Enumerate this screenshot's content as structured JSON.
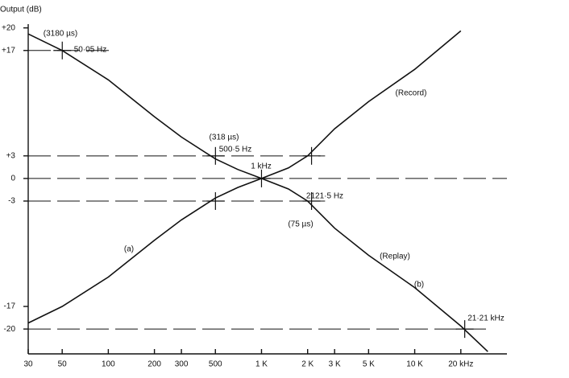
{
  "chart_data": {
    "type": "line",
    "y_axis_label": "Output (dB)",
    "log_x": true,
    "xlim": [
      30,
      40000
    ],
    "xticks": [
      30,
      50,
      100,
      200,
      300,
      500,
      {
        "value": 1000,
        "label": "1 K"
      },
      {
        "value": 2000,
        "label": "2 K"
      },
      {
        "value": 3000,
        "label": "3 K"
      },
      {
        "value": 5000,
        "label": "5 K"
      },
      {
        "value": 10000,
        "label": "10 K"
      },
      {
        "value": 20000,
        "label": "20 kHz"
      }
    ],
    "ylim": [
      -23.3,
      20.5
    ],
    "yticks": [
      {
        "value": 20,
        "label": "+20"
      },
      {
        "value": 17,
        "label": "+17"
      },
      {
        "value": 3,
        "label": "+3"
      },
      0,
      -3,
      -17,
      -20
    ],
    "series": [
      {
        "name": "(Replay)",
        "color": "#111111",
        "x": [
          30,
          50,
          100,
          200,
          300,
          500,
          700,
          1000,
          1500,
          2000,
          3000,
          5000,
          10000,
          20000,
          30000
        ],
        "values": [
          19.2,
          17,
          13.1,
          8.2,
          5.5,
          2.6,
          1.2,
          0,
          -1.4,
          -3,
          -6.6,
          -10.2,
          -14.5,
          -19.6,
          -23
        ]
      },
      {
        "name": "(Record)",
        "color": "#111111",
        "x": [
          30,
          50,
          100,
          200,
          300,
          500,
          700,
          1000,
          1500,
          2000,
          3000,
          5000,
          10000,
          20000
        ],
        "values": [
          -19.2,
          -17,
          -13.1,
          -8.2,
          -5.5,
          -2.6,
          -1.2,
          0,
          1.4,
          3,
          6.6,
          10.2,
          14.5,
          19.6
        ]
      }
    ],
    "reference_lines": [
      {
        "y": 17,
        "x_end": 110
      },
      {
        "y": 3,
        "x_end": 2600
      },
      {
        "y": 0,
        "x_end": 40000
      },
      {
        "y": -3,
        "x_end": 2600
      },
      {
        "y": -20,
        "x_end": 30000
      }
    ],
    "markers": [
      {
        "x": 50.05,
        "y": 17
      },
      {
        "x": 500.5,
        "y": 3
      },
      {
        "x": 500.5,
        "y": -3
      },
      {
        "x": 1000,
        "y": 0
      },
      {
        "x": 2121.5,
        "y": 3
      },
      {
        "x": 2121.5,
        "y": -3
      },
      {
        "x": 21210,
        "y": -20
      }
    ],
    "annotations": [
      "(3180 µs)",
      "50·05 Hz",
      "(318 µs)",
      "500·5 Hz",
      "1 kHz",
      "2121·5 Hz",
      "(75 µs)",
      "21·21 kHz",
      "(a)",
      "(b)"
    ]
  }
}
